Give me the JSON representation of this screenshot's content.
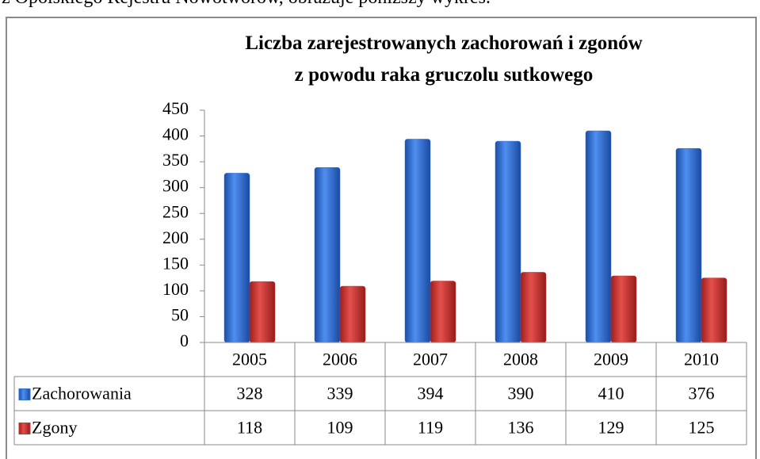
{
  "page_text": "z Opolskiego Rejestru Nowotworów, obrazuje poniższy wykres.",
  "chart_data": {
    "type": "bar",
    "title": [
      "Liczba zarejestrowanych zachorowań i zgonów",
      "z powodu raka gruczolu sutkowego"
    ],
    "categories": [
      "2005",
      "2006",
      "2007",
      "2008",
      "2009",
      "2010"
    ],
    "series": [
      {
        "name": "Zachorowania",
        "color": "#2e6fd8",
        "values": [
          328,
          339,
          394,
          390,
          410,
          376
        ]
      },
      {
        "name": "Zgony",
        "color": "#c8322f",
        "values": [
          118,
          109,
          119,
          136,
          129,
          125
        ]
      }
    ],
    "ylim": [
      0,
      450
    ],
    "yticks": [
      0,
      50,
      100,
      150,
      200,
      250,
      300,
      350,
      400,
      450
    ],
    "grid": false
  }
}
